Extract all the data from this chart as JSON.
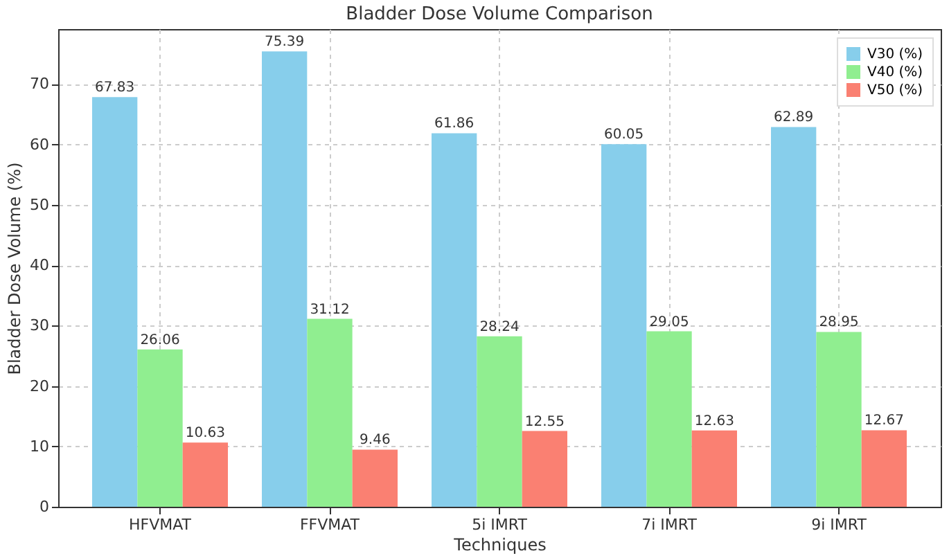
{
  "chart_data": {
    "type": "bar",
    "title": "Bladder Dose Volume Comparison",
    "xlabel": "Techniques",
    "ylabel": "Bladder Dose Volume (%)",
    "categories": [
      "HFVMAT",
      "FFVMAT",
      "5i IMRT",
      "7i IMRT",
      "9i IMRT"
    ],
    "series": [
      {
        "name": "V30 (%)",
        "color": "#87ceeb",
        "values": [
          67.83,
          75.39,
          61.86,
          60.05,
          62.89
        ]
      },
      {
        "name": "V40 (%)",
        "color": "#90ee90",
        "values": [
          26.06,
          31.12,
          28.24,
          29.05,
          28.95
        ]
      },
      {
        "name": "V50 (%)",
        "color": "#fa8072",
        "values": [
          10.63,
          9.46,
          12.55,
          12.63,
          12.67
        ]
      }
    ],
    "ylim": [
      0,
      79.1
    ],
    "yticks": [
      0,
      10,
      20,
      30,
      40,
      50,
      60,
      70
    ],
    "grid": true,
    "legend": "top right",
    "data_labels": true
  }
}
